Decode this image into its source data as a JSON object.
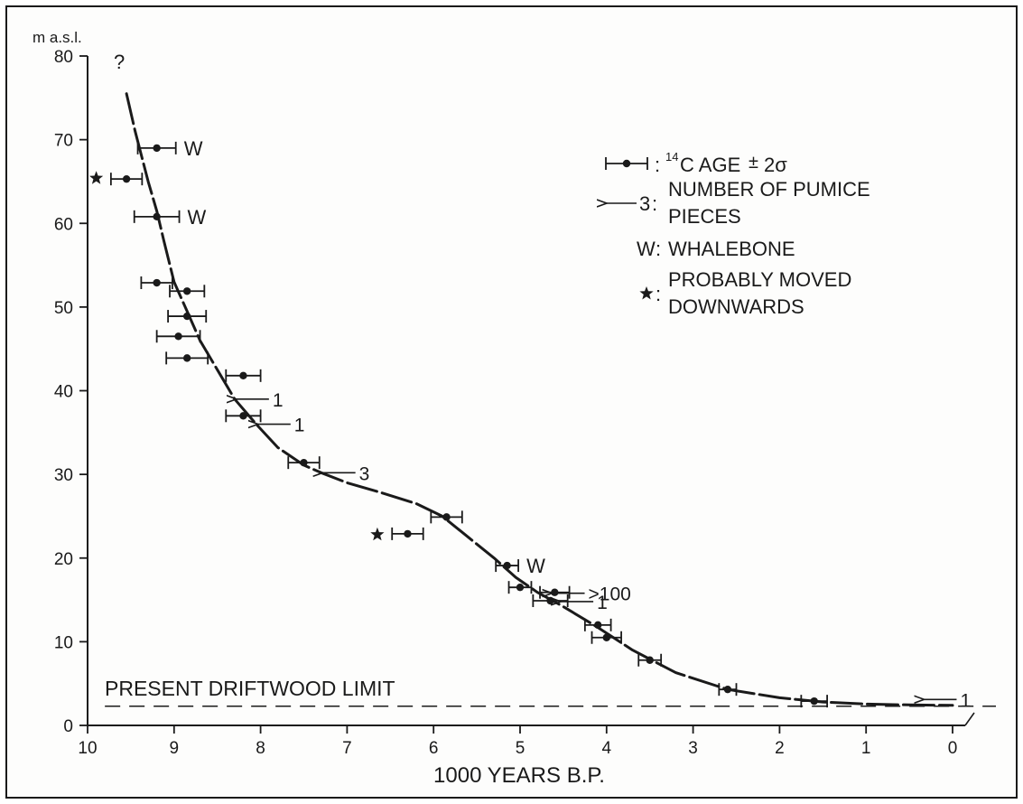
{
  "chart_data": {
    "type": "scatter",
    "title": "",
    "ylabel": "m a.s.l.",
    "xlabel": "1000 YEARS B.P.",
    "xlim": [
      10,
      0
    ],
    "ylim": [
      0,
      80
    ],
    "x_ticks": [
      "10",
      "9",
      "8",
      "7",
      "6",
      "5",
      "4",
      "3",
      "2",
      "1",
      "0"
    ],
    "y_ticks": [
      "0",
      "10",
      "20",
      "30",
      "40",
      "50",
      "60",
      "70",
      "80"
    ],
    "grid": false,
    "legend_placement": "top-right",
    "legend": {
      "age_symbol_label": ":",
      "age_text_1": "14",
      "age_text_2": "C AGE",
      "age_text_3": "±",
      "age_text_4": "2σ",
      "pumice_symbol_label": "3",
      "pumice_colon": ":",
      "pumice_line_1": "NUMBER OF PUMICE",
      "pumice_line_2": "PIECES",
      "whalebone_symbol": "W",
      "whalebone_colon": ":",
      "whalebone_text": "WHALEBONE",
      "moved_symbol": "★",
      "moved_colon": ":",
      "moved_line_1": "PROBABLY MOVED",
      "moved_line_2": "DOWNWARDS"
    },
    "dated_samples": [
      {
        "x": 9.2,
        "y": 69,
        "err": 0.22,
        "label": "W"
      },
      {
        "x": 9.55,
        "y": 65.3,
        "err": 0.18,
        "label": ""
      },
      {
        "x": 9.2,
        "y": 60.8,
        "err": 0.26,
        "label": "W"
      },
      {
        "x": 9.2,
        "y": 52.9,
        "err": 0.18,
        "label": ""
      },
      {
        "x": 8.85,
        "y": 51.9,
        "err": 0.2,
        "label": ""
      },
      {
        "x": 8.85,
        "y": 48.9,
        "err": 0.22,
        "label": ""
      },
      {
        "x": 8.95,
        "y": 46.5,
        "err": 0.25,
        "label": ""
      },
      {
        "x": 8.85,
        "y": 43.9,
        "err": 0.24,
        "label": ""
      },
      {
        "x": 8.2,
        "y": 41.8,
        "err": 0.2,
        "label": ""
      },
      {
        "x": 8.2,
        "y": 37,
        "err": 0.2,
        "label": ""
      },
      {
        "x": 7.5,
        "y": 31.4,
        "err": 0.18,
        "label": ""
      },
      {
        "x": 6.3,
        "y": 22.9,
        "err": 0.18,
        "label": ""
      },
      {
        "x": 5.85,
        "y": 24.9,
        "err": 0.18,
        "label": ""
      },
      {
        "x": 5.15,
        "y": 19.1,
        "err": 0.13,
        "label": "W"
      },
      {
        "x": 5.0,
        "y": 16.5,
        "err": 0.13,
        "label": ""
      },
      {
        "x": 4.6,
        "y": 15.9,
        "err": 0.17,
        "label": ""
      },
      {
        "x": 4.65,
        "y": 14.9,
        "err": 0.2,
        "label": ""
      },
      {
        "x": 4.1,
        "y": 12,
        "err": 0.15,
        "label": ""
      },
      {
        "x": 4.0,
        "y": 10.5,
        "err": 0.17,
        "label": ""
      },
      {
        "x": 3.5,
        "y": 7.8,
        "err": 0.13,
        "label": ""
      },
      {
        "x": 2.6,
        "y": 4.3,
        "err": 0.1,
        "label": ""
      },
      {
        "x": 1.6,
        "y": 2.9,
        "err": 0.15,
        "label": ""
      }
    ],
    "moved_samples": [
      {
        "x": 9.9,
        "y": 65.4
      },
      {
        "x": 6.65,
        "y": 22.8
      }
    ],
    "pumice_finds": [
      {
        "x": 8.3,
        "y": 39,
        "label": "1"
      },
      {
        "x": 8.05,
        "y": 36,
        "label": "1"
      },
      {
        "x": 7.3,
        "y": 30.2,
        "label": "3"
      },
      {
        "x": 4.65,
        "y": 15.8,
        "label": ">100"
      },
      {
        "x": 4.55,
        "y": 14.8,
        "label": "1"
      },
      {
        "x": 0.35,
        "y": 3.1,
        "label": "1"
      }
    ],
    "uncertain_label": "?",
    "curve": [
      [
        9.55,
        75.5
      ],
      [
        9.45,
        71
      ],
      [
        9.3,
        65
      ],
      [
        9.2,
        61.5
      ],
      [
        9.12,
        58
      ],
      [
        9.0,
        53
      ],
      [
        8.85,
        49.5
      ],
      [
        8.7,
        46
      ],
      [
        8.5,
        42.5
      ],
      [
        8.3,
        39
      ],
      [
        8.05,
        36
      ],
      [
        7.8,
        33.2
      ],
      [
        7.5,
        31.1
      ],
      [
        7.3,
        30.2
      ],
      [
        7.0,
        29
      ],
      [
        6.6,
        27.8
      ],
      [
        6.2,
        26.5
      ],
      [
        5.9,
        25
      ],
      [
        5.6,
        22.5
      ],
      [
        5.3,
        20
      ],
      [
        5.05,
        17.7
      ],
      [
        4.8,
        15.9
      ],
      [
        4.5,
        14.2
      ],
      [
        4.1,
        11.7
      ],
      [
        3.7,
        9
      ],
      [
        3.2,
        6.3
      ],
      [
        2.6,
        4.3
      ],
      [
        2.0,
        3.3
      ],
      [
        1.5,
        2.8
      ],
      [
        1.0,
        2.55
      ],
      [
        0.5,
        2.45
      ],
      [
        0.0,
        2.4
      ]
    ],
    "driftwood_limit": {
      "y": 2.3,
      "label": "PRESENT DRIFTWOOD LIMIT"
    }
  }
}
